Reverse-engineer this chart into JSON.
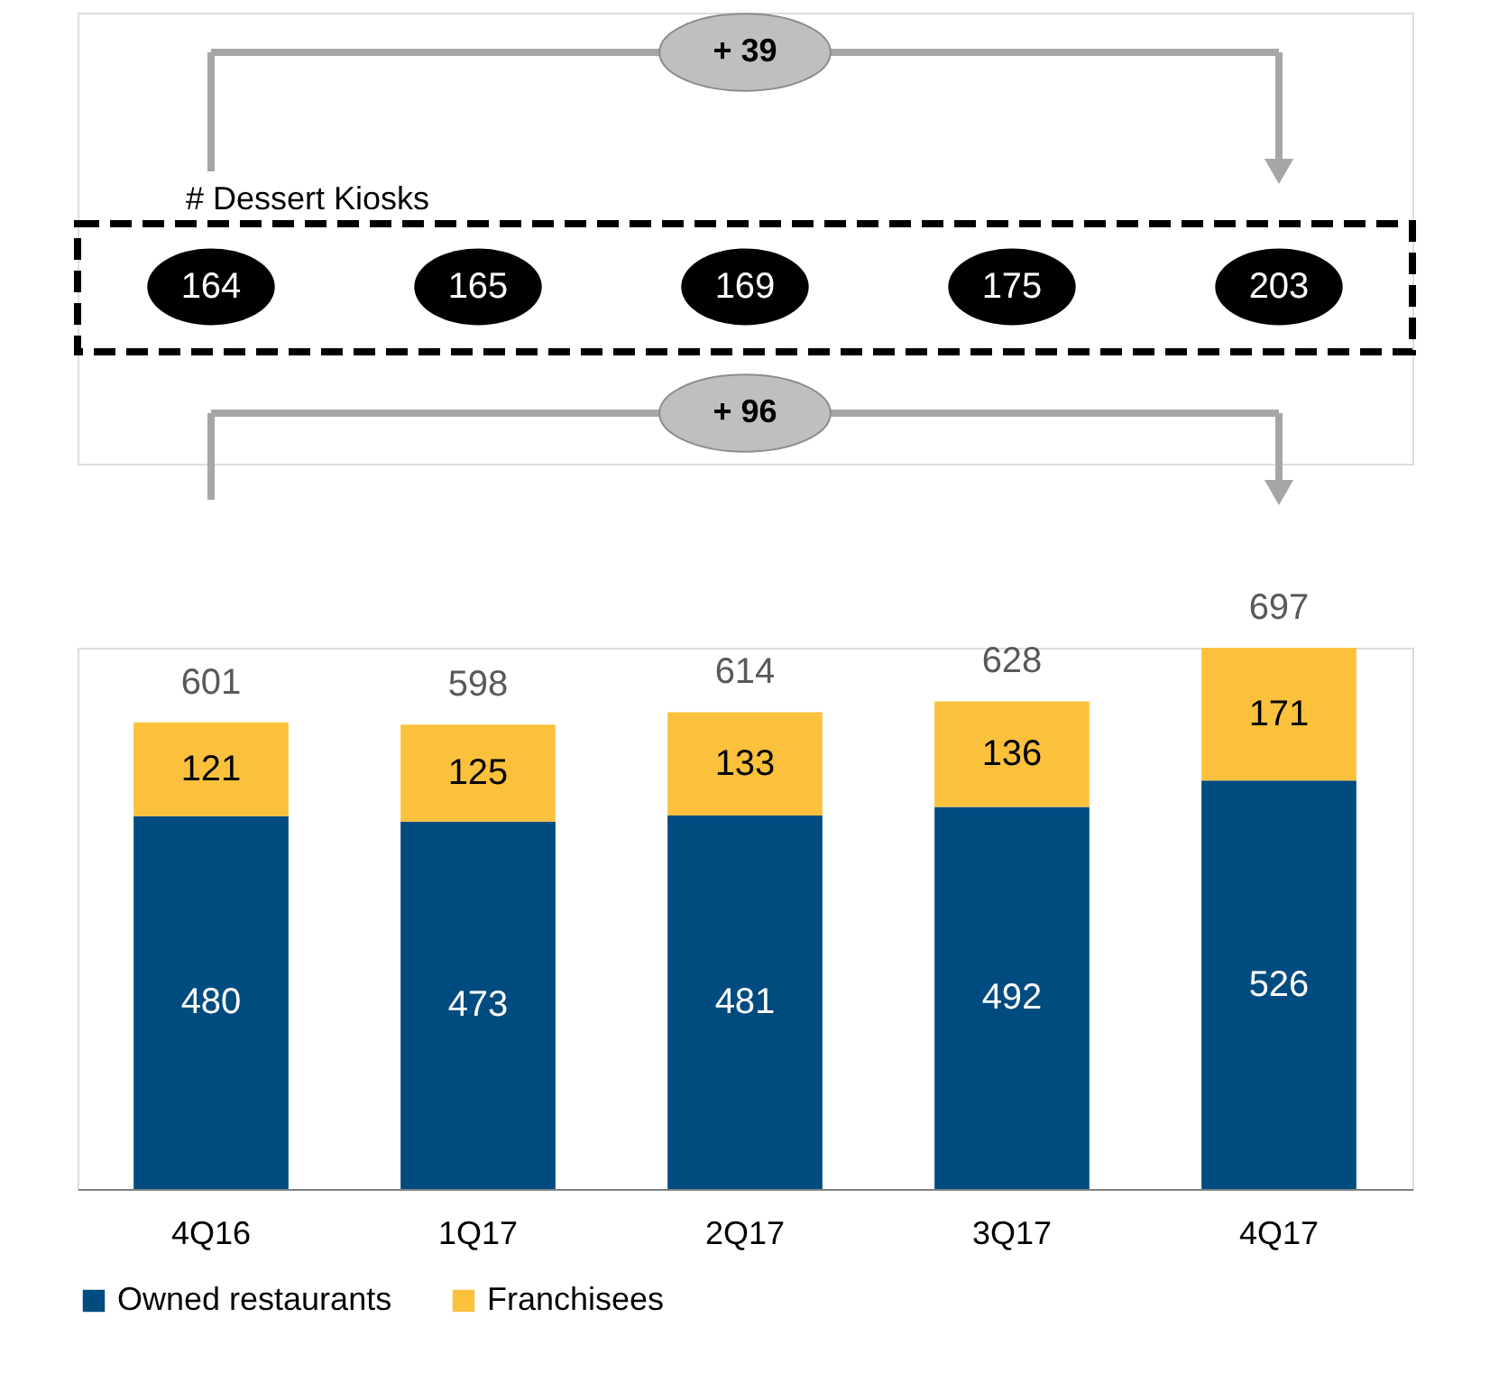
{
  "chart_data": {
    "type": "bar",
    "stacked": true,
    "tick_labels": "x",
    "categories": [
      "4Q16",
      "1Q17",
      "2Q17",
      "3Q17",
      "4Q17"
    ],
    "series": [
      {
        "name": "Owned restaurants",
        "color": "#004b7f",
        "values": [
          480,
          473,
          481,
          492,
          526
        ]
      },
      {
        "name": "Franchisees",
        "color": "#fbc13d",
        "values": [
          121,
          125,
          133,
          136,
          171
        ]
      }
    ],
    "data_labels": true,
    "totals": [
      "601",
      "598",
      "614",
      "628",
      "697"
    ],
    "annotations": [
      "# Dessert Kiosks",
      "+ 39",
      "+ 96",
      "164",
      "165",
      "169",
      "175",
      "203"
    ],
    "legend": "bottom",
    "grid": false
  }
}
